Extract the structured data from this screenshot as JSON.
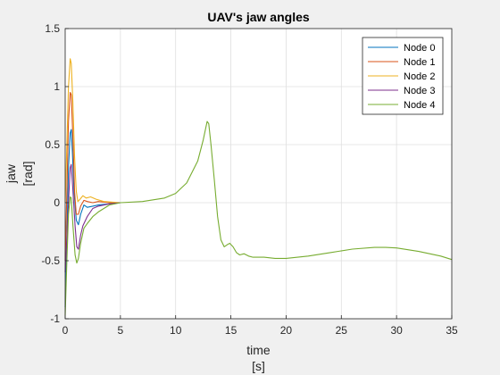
{
  "chart_data": {
    "type": "line",
    "title": "UAV's jaw angles",
    "xlabel_line1": "time",
    "xlabel_line2": "[s]",
    "ylabel_line1": "jaw",
    "ylabel_line2": "[rad]",
    "xlim": [
      0,
      35
    ],
    "ylim": [
      -1,
      1.5
    ],
    "xticks": [
      0,
      5,
      10,
      15,
      20,
      25,
      30,
      35
    ],
    "yticks": [
      -1,
      -0.5,
      0,
      0.5,
      1,
      1.5
    ],
    "grid": true,
    "legend_position": "top-right",
    "series": [
      {
        "name": "Node 0",
        "color": "#0072bd",
        "points": [
          [
            0,
            -0.9
          ],
          [
            0.15,
            -0.3
          ],
          [
            0.3,
            0.3
          ],
          [
            0.45,
            0.6
          ],
          [
            0.55,
            0.63
          ],
          [
            0.65,
            0.45
          ],
          [
            0.8,
            0.1
          ],
          [
            1.0,
            -0.15
          ],
          [
            1.2,
            -0.19
          ],
          [
            1.4,
            -0.1
          ],
          [
            1.7,
            -0.02
          ],
          [
            2.0,
            -0.04
          ],
          [
            2.5,
            -0.03
          ],
          [
            3.0,
            -0.02
          ],
          [
            4.0,
            -0.01
          ],
          [
            5.0,
            0.0
          ]
        ]
      },
      {
        "name": "Node 1",
        "color": "#d95319",
        "points": [
          [
            0,
            -0.5
          ],
          [
            0.15,
            0.1
          ],
          [
            0.3,
            0.7
          ],
          [
            0.45,
            0.95
          ],
          [
            0.55,
            0.93
          ],
          [
            0.7,
            0.55
          ],
          [
            0.85,
            0.1
          ],
          [
            1.0,
            -0.1
          ],
          [
            1.2,
            -0.1
          ],
          [
            1.4,
            -0.03
          ],
          [
            1.7,
            0.02
          ],
          [
            2.0,
            0.01
          ],
          [
            2.5,
            0.0
          ],
          [
            3.0,
            0.01
          ],
          [
            4.0,
            0.0
          ],
          [
            5.0,
            0.0
          ]
        ]
      },
      {
        "name": "Node 2",
        "color": "#edb120",
        "points": [
          [
            0,
            0.0
          ],
          [
            0.15,
            0.5
          ],
          [
            0.3,
            1.0
          ],
          [
            0.45,
            1.24
          ],
          [
            0.55,
            1.2
          ],
          [
            0.7,
            0.85
          ],
          [
            0.85,
            0.4
          ],
          [
            1.0,
            0.1
          ],
          [
            1.15,
            0.01
          ],
          [
            1.35,
            0.03
          ],
          [
            1.6,
            0.06
          ],
          [
            1.9,
            0.04
          ],
          [
            2.3,
            0.05
          ],
          [
            2.8,
            0.03
          ],
          [
            3.5,
            0.01
          ],
          [
            5.0,
            0.0
          ]
        ]
      },
      {
        "name": "Node 3",
        "color": "#7e2f8e",
        "points": [
          [
            0,
            -0.6
          ],
          [
            0.15,
            -0.3
          ],
          [
            0.3,
            0.0
          ],
          [
            0.45,
            0.3
          ],
          [
            0.55,
            0.33
          ],
          [
            0.7,
            0.1
          ],
          [
            0.9,
            -0.2
          ],
          [
            1.05,
            -0.38
          ],
          [
            1.2,
            -0.4
          ],
          [
            1.4,
            -0.28
          ],
          [
            1.6,
            -0.2
          ],
          [
            2.0,
            -0.12
          ],
          [
            2.5,
            -0.05
          ],
          [
            3.0,
            -0.03
          ],
          [
            4.0,
            -0.01
          ],
          [
            5.0,
            0.0
          ]
        ]
      },
      {
        "name": "Node 4",
        "color": "#77ac30",
        "points": [
          [
            0,
            -0.97
          ],
          [
            0.15,
            -0.5
          ],
          [
            0.3,
            -0.1
          ],
          [
            0.45,
            0.05
          ],
          [
            0.55,
            0.04
          ],
          [
            0.7,
            -0.2
          ],
          [
            0.9,
            -0.45
          ],
          [
            1.05,
            -0.52
          ],
          [
            1.2,
            -0.48
          ],
          [
            1.4,
            -0.35
          ],
          [
            1.7,
            -0.22
          ],
          [
            2.0,
            -0.18
          ],
          [
            2.5,
            -0.12
          ],
          [
            3.0,
            -0.08
          ],
          [
            4.0,
            -0.02
          ],
          [
            5.0,
            0.0
          ],
          [
            7.0,
            0.01
          ],
          [
            9.0,
            0.04
          ],
          [
            10.0,
            0.08
          ],
          [
            11.0,
            0.17
          ],
          [
            12.0,
            0.36
          ],
          [
            12.5,
            0.54
          ],
          [
            12.85,
            0.7
          ],
          [
            13.0,
            0.68
          ],
          [
            13.2,
            0.5
          ],
          [
            13.5,
            0.2
          ],
          [
            13.8,
            -0.12
          ],
          [
            14.1,
            -0.32
          ],
          [
            14.4,
            -0.38
          ],
          [
            14.7,
            -0.36
          ],
          [
            14.9,
            -0.35
          ],
          [
            15.2,
            -0.38
          ],
          [
            15.5,
            -0.43
          ],
          [
            15.8,
            -0.45
          ],
          [
            16.2,
            -0.44
          ],
          [
            16.6,
            -0.46
          ],
          [
            17.0,
            -0.47
          ],
          [
            18.0,
            -0.47
          ],
          [
            19.0,
            -0.48
          ],
          [
            20.0,
            -0.48
          ],
          [
            22.0,
            -0.46
          ],
          [
            24.0,
            -0.43
          ],
          [
            26.0,
            -0.4
          ],
          [
            28.0,
            -0.385
          ],
          [
            29.0,
            -0.385
          ],
          [
            30.0,
            -0.39
          ],
          [
            32.0,
            -0.42
          ],
          [
            34.0,
            -0.46
          ],
          [
            35.0,
            -0.49
          ]
        ]
      }
    ]
  }
}
